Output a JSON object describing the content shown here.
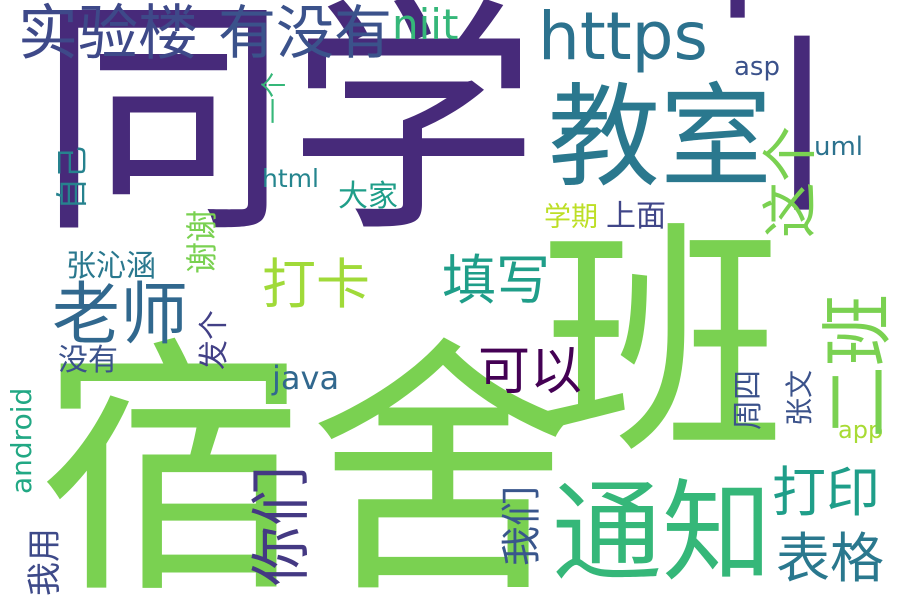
{
  "words": [
    {
      "text": "同学",
      "color": "#472a7a"
    },
    {
      "text": "宿舍",
      "color": "#7ad151"
    },
    {
      "text": "班",
      "color": "#7ad151"
    },
    {
      "text": "一下",
      "color": "#472a7a"
    },
    {
      "text": "通知",
      "color": "#35b779"
    },
    {
      "text": "教室",
      "color": "#2a788e"
    },
    {
      "text": "老师",
      "color": "#31688e"
    },
    {
      "text": "https",
      "color": "#2c728e"
    },
    {
      "text": "实验楼",
      "color": "#3e4989"
    },
    {
      "text": "有没有",
      "color": "#3b528b"
    },
    {
      "text": "niit",
      "color": "#35b779"
    },
    {
      "text": "二班",
      "color": "#7ad151"
    },
    {
      "text": "你们",
      "color": "#443983"
    },
    {
      "text": "这个",
      "color": "#7ad151"
    },
    {
      "text": "打卡",
      "color": "#a0da39"
    },
    {
      "text": "填写",
      "color": "#1f9e89"
    },
    {
      "text": "可以",
      "color": "#440154"
    },
    {
      "text": "打印",
      "color": "#1f9e89"
    },
    {
      "text": "表格",
      "color": "#2a788e"
    },
    {
      "text": "java",
      "color": "#31688e"
    },
    {
      "text": "我们",
      "color": "#39568c"
    },
    {
      "text": "android",
      "color": "#22a884"
    },
    {
      "text": "张沁涵",
      "color": "#2a788e"
    },
    {
      "text": "谢谢",
      "color": "#7ad151"
    },
    {
      "text": "自己",
      "color": "#26828e"
    },
    {
      "text": "大家",
      "color": "#1f9e89"
    },
    {
      "text": "html",
      "color": "#25858e"
    },
    {
      "text": "学期",
      "color": "#bddf26"
    },
    {
      "text": "上面",
      "color": "#404688"
    },
    {
      "text": "发个",
      "color": "#424086"
    },
    {
      "text": "没有",
      "color": "#3b528b"
    },
    {
      "text": "我用",
      "color": "#3e4a89"
    },
    {
      "text": "张文",
      "color": "#3b528b"
    },
    {
      "text": "周四",
      "color": "#3b528b"
    },
    {
      "text": "uml",
      "color": "#2c728e"
    },
    {
      "text": "asp",
      "color": "#3b528b"
    },
    {
      "text": "一个",
      "color": "#35b779"
    },
    {
      "text": "app",
      "color": "#a8db34"
    }
  ]
}
